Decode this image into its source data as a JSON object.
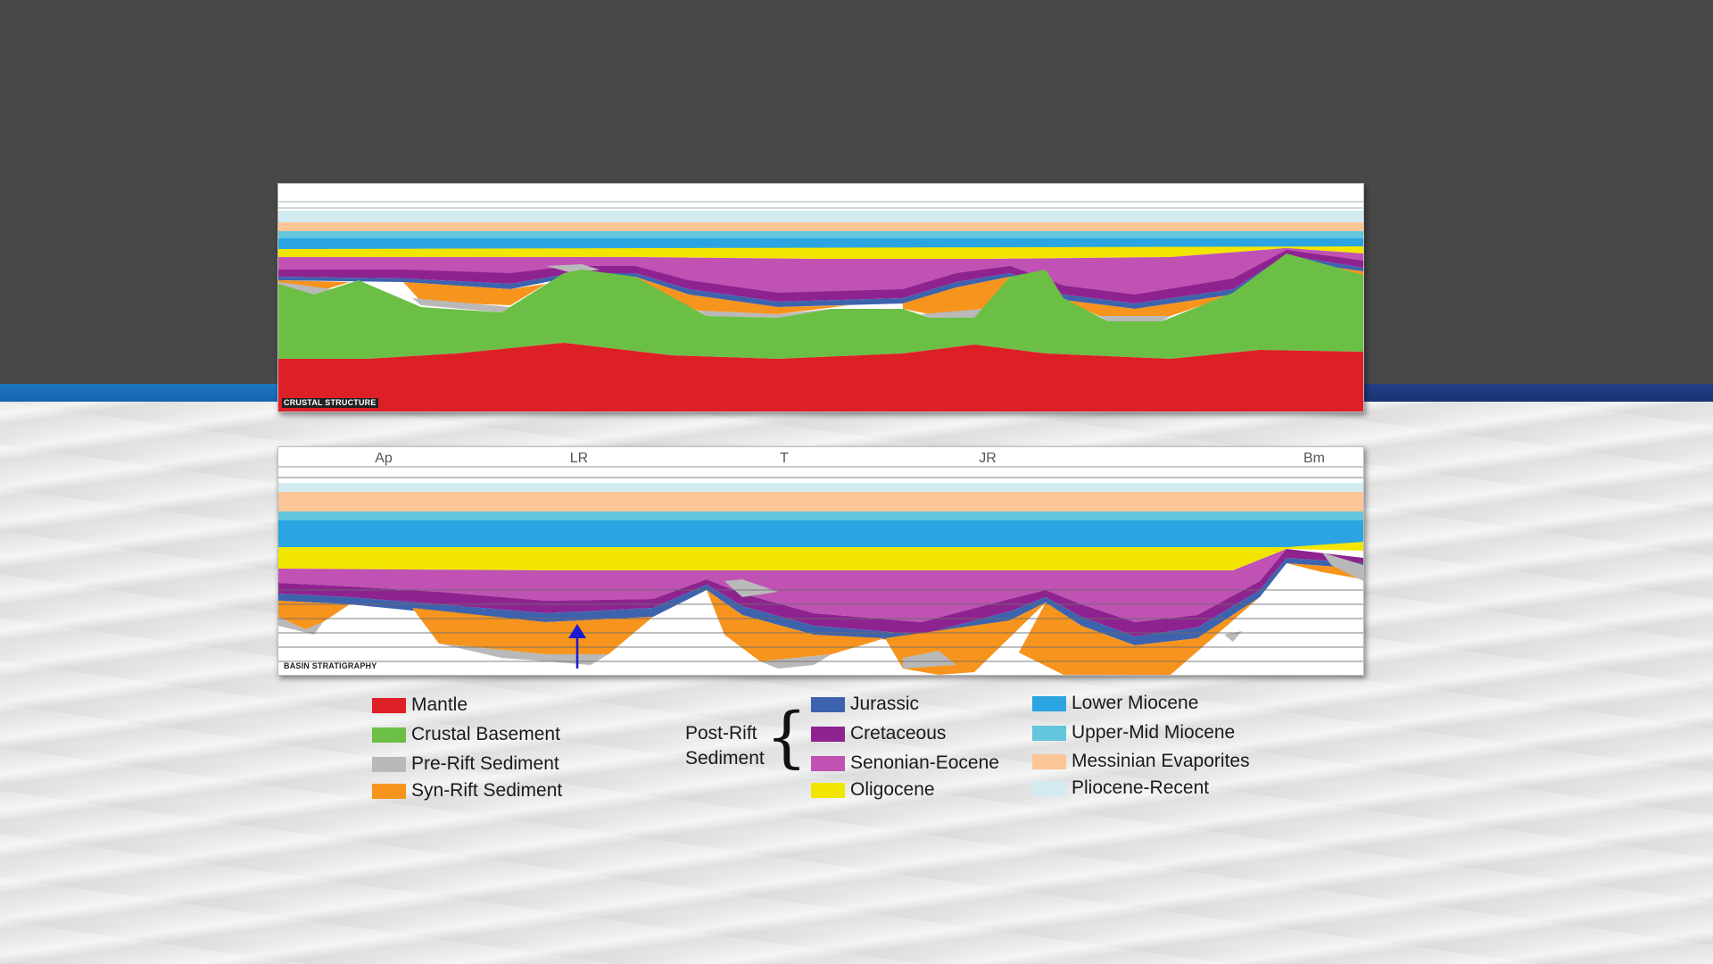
{
  "colors": {
    "mantle": "#dd1f26",
    "crustal_basement": "#6cbf45",
    "pre_rift": "#b9b9b9",
    "syn_rift": "#f7941d",
    "jurassic": "#3e63ae",
    "cretaceous": "#8e2390",
    "senonian_eocene": "#c052b4",
    "oligocene": "#f2e600",
    "lower_miocene": "#2aa5e1",
    "upper_mid_miocene": "#63c6dc",
    "messinian": "#fbc597",
    "pliocene_recent": "#d2ebf1"
  },
  "panels": {
    "top": {
      "label": "CRUSTAL STRUCTURE"
    },
    "bottom": {
      "label": "BASIN STRATIGRAPHY",
      "locations": [
        "Ap",
        "LR",
        "T",
        "JR",
        "Bm"
      ]
    }
  },
  "legend": {
    "basement": [
      {
        "label": "Mantle",
        "color": "#dd1f26"
      },
      {
        "label": "Crustal Basement",
        "color": "#6cbf45"
      },
      {
        "label": "Pre-Rift Sediment",
        "color": "#b9b9b9"
      },
      {
        "label": "Syn-Rift Sediment",
        "color": "#f7941d"
      }
    ],
    "post_rift_title_line1": "Post-Rift",
    "post_rift_title_line2": "Sediment",
    "post_rift": [
      {
        "label": "Jurassic",
        "color": "#3e63ae"
      },
      {
        "label": "Cretaceous",
        "color": "#8e2390"
      },
      {
        "label": "Senonian-Eocene",
        "color": "#c052b4"
      },
      {
        "label": "Oligocene",
        "color": "#f2e600"
      }
    ],
    "upper": [
      {
        "label": "Lower Miocene",
        "color": "#2aa5e1"
      },
      {
        "label": "Upper-Mid Miocene",
        "color": "#63c6dc"
      },
      {
        "label": "Messinian Evaporites",
        "color": "#fbc597"
      },
      {
        "label": "Pliocene-Recent",
        "color": "#d2ebf1"
      }
    ]
  }
}
